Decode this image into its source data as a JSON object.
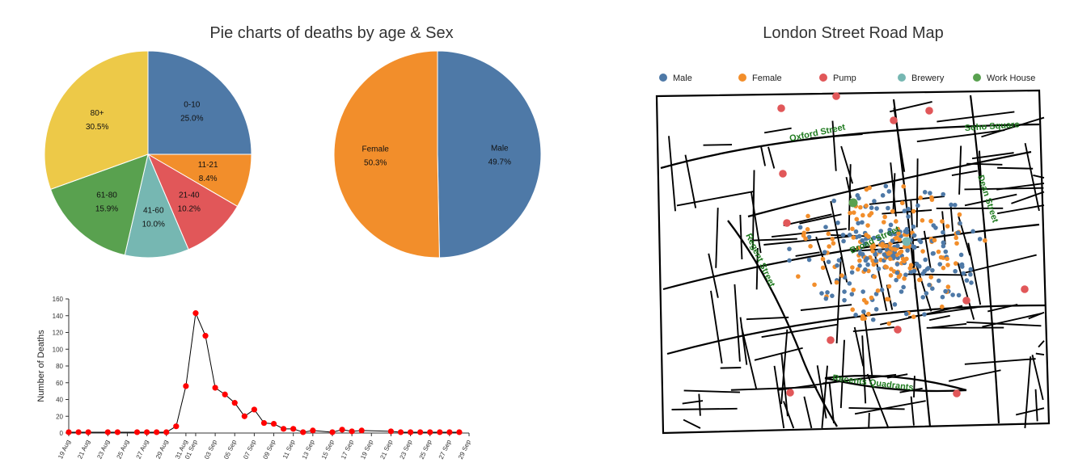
{
  "pie_section_title": "Pie charts of deaths by age & Sex",
  "map": {
    "title": "London Street Road Map",
    "legend": [
      {
        "label": "Male",
        "color": "#4e79a7"
      },
      {
        "label": "Female",
        "color": "#f28e2b"
      },
      {
        "label": "Pump",
        "color": "#e15759"
      },
      {
        "label": "Brewery",
        "color": "#76b7b2"
      },
      {
        "label": "Work House",
        "color": "#59a14f"
      }
    ],
    "streets": [
      "Oxford Street",
      "Soho Square",
      "Dean Street",
      "Regent Street",
      "Broad Street",
      "Recents Quadrants"
    ]
  },
  "chart_data": [
    {
      "type": "pie",
      "categories": [
        "0-10",
        "11-21",
        "21-40",
        "41-60",
        "61-80",
        "80+"
      ],
      "values": [
        25.0,
        8.4,
        10.2,
        10.0,
        15.9,
        30.5
      ],
      "value_labels": [
        "25.0%",
        "8.4%",
        "10.2%",
        "10.0%",
        "15.9%",
        "30.5%"
      ],
      "colors": [
        "#4e79a7",
        "#f28e2b",
        "#e15759",
        "#76b7b2",
        "#59a14f",
        "#edc948"
      ]
    },
    {
      "type": "pie",
      "categories": [
        "Male",
        "Female"
      ],
      "values": [
        49.7,
        50.3
      ],
      "value_labels": [
        "49.7%",
        "50.3%"
      ],
      "colors": [
        "#4e79a7",
        "#f28e2b"
      ]
    },
    {
      "type": "line",
      "ylabel": "Number of Deaths",
      "ylim": [
        0,
        160
      ],
      "yticks": [
        0,
        20,
        40,
        60,
        80,
        100,
        120,
        140,
        160
      ],
      "x_range": [
        "19 Aug",
        "29 Sep"
      ],
      "xticks": [
        "19 Aug",
        "21 Aug",
        "23 Aug",
        "25 Aug",
        "27 Aug",
        "29 Aug",
        "31 Aug",
        "01 Sep",
        "03 Sep",
        "05 Sep",
        "07 Sep",
        "09 Sep",
        "11 Sep",
        "13 Sep",
        "15 Sep",
        "17 Sep",
        "19 Sep",
        "21 Sep",
        "23 Sep",
        "25 Sep",
        "27 Sep",
        "29 Sep"
      ],
      "points": [
        {
          "x": "19 Aug",
          "y": 1
        },
        {
          "x": "20 Aug",
          "y": 1
        },
        {
          "x": "21 Aug",
          "y": 1
        },
        {
          "x": "23 Aug",
          "y": 1
        },
        {
          "x": "24 Aug",
          "y": 1
        },
        {
          "x": "26 Aug",
          "y": 1
        },
        {
          "x": "27 Aug",
          "y": 1
        },
        {
          "x": "28 Aug",
          "y": 1
        },
        {
          "x": "29 Aug",
          "y": 1
        },
        {
          "x": "30 Aug",
          "y": 8
        },
        {
          "x": "31 Aug",
          "y": 56
        },
        {
          "x": "01 Sep",
          "y": 143
        },
        {
          "x": "02 Sep",
          "y": 116
        },
        {
          "x": "03 Sep",
          "y": 54
        },
        {
          "x": "04 Sep",
          "y": 46
        },
        {
          "x": "05 Sep",
          "y": 36
        },
        {
          "x": "06 Sep",
          "y": 20
        },
        {
          "x": "07 Sep",
          "y": 28
        },
        {
          "x": "08 Sep",
          "y": 12
        },
        {
          "x": "09 Sep",
          "y": 11
        },
        {
          "x": "10 Sep",
          "y": 5
        },
        {
          "x": "11 Sep",
          "y": 5
        },
        {
          "x": "12 Sep",
          "y": 1
        },
        {
          "x": "13 Sep",
          "y": 3
        },
        {
          "x": "15 Sep",
          "y": 1
        },
        {
          "x": "16 Sep",
          "y": 4
        },
        {
          "x": "17 Sep",
          "y": 2
        },
        {
          "x": "18 Sep",
          "y": 3
        },
        {
          "x": "21 Sep",
          "y": 2
        },
        {
          "x": "22 Sep",
          "y": 1
        },
        {
          "x": "23 Sep",
          "y": 1
        },
        {
          "x": "24 Sep",
          "y": 1
        },
        {
          "x": "25 Sep",
          "y": 1
        },
        {
          "x": "26 Sep",
          "y": 1
        },
        {
          "x": "27 Sep",
          "y": 1
        },
        {
          "x": "28 Sep",
          "y": 1
        }
      ],
      "point_color": "#ff0000",
      "line_color": "#000000"
    }
  ]
}
